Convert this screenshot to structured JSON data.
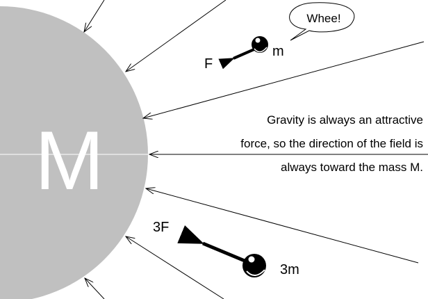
{
  "mass_label": "M",
  "bubble": "Whee!",
  "small_mass": {
    "label": "m",
    "force": "F"
  },
  "large_mass": {
    "label": "3m",
    "force": "3F"
  },
  "note": [
    "Gravity is always an attractive",
    "force, so the direction of the field is",
    "always toward the mass M."
  ]
}
